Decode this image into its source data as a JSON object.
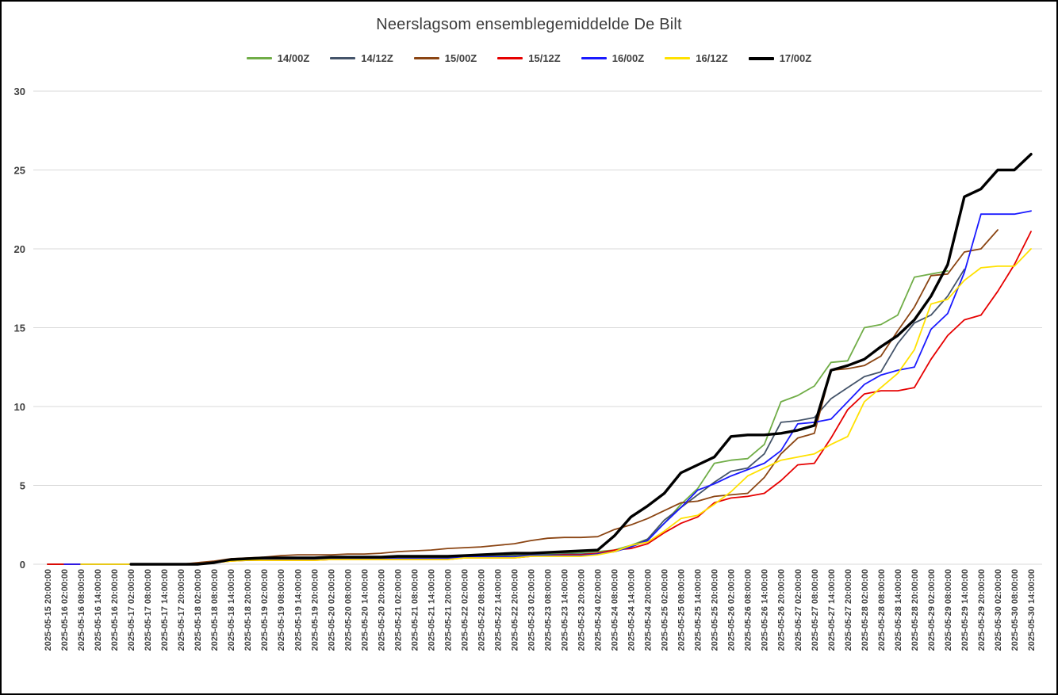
{
  "chart_data": {
    "type": "line",
    "title": "Neerslagsom ensemblegemiddelde De Bilt",
    "xlabel": "",
    "ylabel": "",
    "ylim": [
      0,
      30
    ],
    "ytick_step": 5,
    "grid": true,
    "legend_position": "top",
    "colors": {
      "grid": "#d9d9d9",
      "axis_text": "#404040",
      "title_text": "#3b3b3b"
    },
    "categories": [
      "2025-05-15 20:00:00",
      "2025-05-16 02:00:00",
      "2025-05-16 08:00:00",
      "2025-05-16 14:00:00",
      "2025-05-16 20:00:00",
      "2025-05-17 02:00:00",
      "2025-05-17 08:00:00",
      "2025-05-17 14:00:00",
      "2025-05-17 20:00:00",
      "2025-05-18 02:00:00",
      "2025-05-18 08:00:00",
      "2025-05-18 14:00:00",
      "2025-05-18 20:00:00",
      "2025-05-19 02:00:00",
      "2025-05-19 08:00:00",
      "2025-05-19 14:00:00",
      "2025-05-19 20:00:00",
      "2025-05-20 02:00:00",
      "2025-05-20 08:00:00",
      "2025-05-20 14:00:00",
      "2025-05-20 20:00:00",
      "2025-05-21 02:00:00",
      "2025-05-21 08:00:00",
      "2025-05-21 14:00:00",
      "2025-05-21 20:00:00",
      "2025-05-22 02:00:00",
      "2025-05-22 08:00:00",
      "2025-05-22 14:00:00",
      "2025-05-22 20:00:00",
      "2025-05-23 02:00:00",
      "2025-05-23 08:00:00",
      "2025-05-23 14:00:00",
      "2025-05-23 20:00:00",
      "2025-05-24 02:00:00",
      "2025-05-24 08:00:00",
      "2025-05-24 14:00:00",
      "2025-05-24 20:00:00",
      "2025-05-25 02:00:00",
      "2025-05-25 08:00:00",
      "2025-05-25 14:00:00",
      "2025-05-25 20:00:00",
      "2025-05-26 02:00:00",
      "2025-05-26 08:00:00",
      "2025-05-26 14:00:00",
      "2025-05-26 20:00:00",
      "2025-05-27 02:00:00",
      "2025-05-27 08:00:00",
      "2025-05-27 14:00:00",
      "2025-05-27 20:00:00",
      "2025-05-28 02:00:00",
      "2025-05-28 08:00:00",
      "2025-05-28 14:00:00",
      "2025-05-28 20:00:00",
      "2025-05-29 02:00:00",
      "2025-05-29 08:00:00",
      "2025-05-29 14:00:00",
      "2025-05-29 20:00:00",
      "2025-05-30 02:00:00",
      "2025-05-30 08:00:00",
      "2025-05-30 14:00:00"
    ],
    "series": [
      {
        "name": "14/00Z",
        "color": "#70ad47",
        "width": 1.8,
        "values": [
          0,
          0,
          0,
          0,
          0,
          0,
          0,
          0,
          0,
          0,
          0.1,
          0.25,
          0.3,
          0.3,
          0.3,
          0.3,
          0.3,
          0.35,
          0.35,
          0.35,
          0.35,
          0.4,
          0.4,
          0.4,
          0.4,
          0.45,
          0.5,
          0.55,
          0.6,
          0.6,
          0.65,
          0.7,
          0.75,
          0.8,
          0.9,
          1.2,
          1.6,
          2.6,
          3.8,
          4.8,
          6.4,
          6.6,
          6.7,
          7.6,
          10.3,
          10.7,
          11.3,
          12.8,
          12.9,
          15.0,
          15.2,
          15.8,
          18.2,
          18.4,
          18.6,
          null,
          null,
          null,
          null,
          null
        ]
      },
      {
        "name": "14/12Z",
        "color": "#44546a",
        "width": 1.8,
        "values": [
          0,
          0,
          0,
          0,
          0,
          0,
          0,
          0,
          0,
          0,
          0.1,
          0.25,
          0.3,
          0.3,
          0.3,
          0.3,
          0.3,
          0.35,
          0.35,
          0.35,
          0.35,
          0.4,
          0.4,
          0.4,
          0.4,
          0.45,
          0.5,
          0.5,
          0.55,
          0.6,
          0.6,
          0.65,
          0.65,
          0.7,
          0.8,
          1.1,
          1.6,
          2.8,
          3.6,
          4.4,
          5.2,
          5.9,
          6.1,
          7.0,
          9.0,
          9.1,
          9.3,
          10.5,
          11.2,
          11.9,
          12.2,
          14.0,
          15.3,
          15.8,
          17.0,
          18.7,
          null,
          null,
          null,
          null
        ]
      },
      {
        "name": "15/00Z",
        "color": "#8b4513",
        "width": 1.8,
        "values": [
          0,
          0,
          0,
          0,
          0,
          0,
          0,
          0,
          0,
          0.1,
          0.2,
          0.35,
          0.4,
          0.45,
          0.55,
          0.6,
          0.6,
          0.6,
          0.65,
          0.65,
          0.7,
          0.8,
          0.85,
          0.9,
          1.0,
          1.05,
          1.1,
          1.2,
          1.3,
          1.5,
          1.65,
          1.7,
          1.7,
          1.75,
          2.2,
          2.5,
          2.9,
          3.4,
          3.9,
          4.0,
          4.3,
          4.4,
          4.5,
          5.5,
          7.0,
          8.0,
          8.3,
          12.3,
          12.4,
          12.6,
          13.2,
          14.8,
          16.3,
          18.3,
          18.4,
          19.8,
          20.0,
          21.2,
          null,
          null
        ]
      },
      {
        "name": "15/12Z",
        "color": "#e60000",
        "width": 1.8,
        "values": [
          0,
          0,
          0,
          0,
          0,
          0,
          0,
          0,
          0,
          0,
          0.1,
          0.2,
          0.25,
          0.25,
          0.25,
          0.25,
          0.25,
          0.3,
          0.3,
          0.3,
          0.3,
          0.3,
          0.3,
          0.3,
          0.3,
          0.4,
          0.4,
          0.4,
          0.4,
          0.5,
          0.55,
          0.6,
          0.6,
          0.7,
          0.9,
          1.0,
          1.3,
          2.0,
          2.6,
          3.0,
          3.9,
          4.2,
          4.3,
          4.5,
          5.3,
          6.3,
          6.4,
          8.0,
          9.8,
          10.8,
          11.0,
          11.0,
          11.2,
          13.0,
          14.5,
          15.5,
          15.8,
          17.3,
          19.0,
          21.1
        ]
      },
      {
        "name": "16/00Z",
        "color": "#1a1aff",
        "width": 1.8,
        "values": [
          null,
          0,
          0,
          0,
          0,
          0,
          0,
          0,
          0,
          0,
          0.1,
          0.25,
          0.3,
          0.3,
          0.3,
          0.3,
          0.3,
          0.35,
          0.35,
          0.35,
          0.35,
          0.35,
          0.35,
          0.35,
          0.35,
          0.45,
          0.45,
          0.45,
          0.45,
          0.55,
          0.55,
          0.55,
          0.55,
          0.65,
          0.8,
          1.1,
          1.5,
          2.6,
          3.6,
          4.7,
          5.1,
          5.6,
          6.0,
          6.4,
          7.2,
          8.9,
          9.0,
          9.2,
          10.3,
          11.4,
          12.0,
          12.3,
          12.5,
          14.9,
          15.9,
          18.5,
          22.2,
          22.2,
          22.2,
          22.4
        ]
      },
      {
        "name": "16/12Z",
        "color": "#ffe100",
        "width": 1.8,
        "values": [
          null,
          null,
          0,
          0,
          0,
          0,
          0,
          0,
          0,
          0,
          0.1,
          0.2,
          0.25,
          0.25,
          0.25,
          0.25,
          0.25,
          0.3,
          0.3,
          0.3,
          0.3,
          0.3,
          0.3,
          0.3,
          0.3,
          0.4,
          0.4,
          0.4,
          0.4,
          0.5,
          0.5,
          0.5,
          0.5,
          0.6,
          0.8,
          1.2,
          1.4,
          2.1,
          2.9,
          3.1,
          3.8,
          4.6,
          5.6,
          6.1,
          6.6,
          6.8,
          7.0,
          7.6,
          8.1,
          10.3,
          11.2,
          12.1,
          13.6,
          16.5,
          16.8,
          18.0,
          18.8,
          18.9,
          18.9,
          20.0
        ]
      },
      {
        "name": "17/00Z",
        "color": "#000000",
        "width": 3.4,
        "values": [
          null,
          null,
          null,
          null,
          null,
          0,
          0,
          0,
          0,
          0,
          0.1,
          0.3,
          0.35,
          0.4,
          0.4,
          0.4,
          0.4,
          0.45,
          0.45,
          0.45,
          0.45,
          0.5,
          0.5,
          0.5,
          0.5,
          0.55,
          0.6,
          0.65,
          0.7,
          0.7,
          0.75,
          0.8,
          0.85,
          0.9,
          1.8,
          3.0,
          3.7,
          4.5,
          5.8,
          6.3,
          6.8,
          8.1,
          8.2,
          8.2,
          8.3,
          8.5,
          8.8,
          12.3,
          12.6,
          13.0,
          13.8,
          14.5,
          15.5,
          17.0,
          19.0,
          23.3,
          23.8,
          25.0,
          25.0,
          26.0
        ]
      }
    ]
  }
}
